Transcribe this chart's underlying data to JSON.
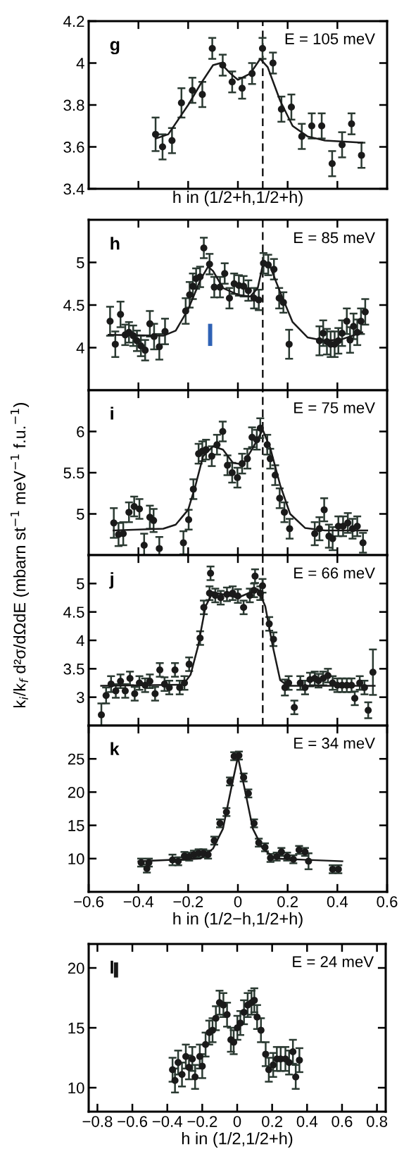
{
  "chart_data": [
    {
      "type": "scatter",
      "xlabel": "h in (1/2+h,1/2+h)",
      "xlim": [
        -0.6,
        0.6
      ],
      "xticks": [
        {
          "value": -0.4,
          "label": null
        },
        {
          "value": -0.2,
          "label": null
        },
        {
          "value": 0,
          "label": null
        },
        {
          "value": 0.2,
          "label": null
        },
        {
          "value": 0.4,
          "label": null
        }
      ],
      "ylim": [
        3.4,
        4.2
      ],
      "yticks": [
        3.4,
        3.6,
        3.8,
        4,
        4.2
      ],
      "tick_labels": "y",
      "grid": false,
      "legend": false,
      "annotations": [
        "g",
        "E = 105 meV"
      ],
      "ref_lines": [
        {
          "axis": "x",
          "value": 0.1,
          "color": "#000000",
          "line_style": "dashed"
        }
      ],
      "series": [
        {
          "type": "scatter",
          "marker": "circle",
          "color": "#1a1a1a",
          "x": [
            -0.331,
            -0.303,
            -0.265,
            -0.227,
            -0.183,
            -0.143,
            -0.103,
            -0.061,
            -0.023,
            0.017,
            0.057,
            0.099,
            0.141,
            0.175,
            0.215,
            0.257,
            0.297,
            0.337,
            0.379,
            0.419,
            0.457,
            0.497
          ],
          "values": [
            3.66,
            3.6,
            3.63,
            3.81,
            3.87,
            3.85,
            4.07,
            3.99,
            3.91,
            3.88,
            3.95,
            4.07,
            4.0,
            3.78,
            3.79,
            3.65,
            3.7,
            3.7,
            3.52,
            3.61,
            3.71,
            3.56
          ],
          "errors": [
            0.08,
            0.06,
            0.06,
            0.07,
            0.06,
            0.06,
            0.05,
            0.05,
            0.05,
            0.05,
            0.05,
            0.05,
            0.05,
            0.06,
            0.06,
            0.06,
            0.06,
            0.06,
            0.06,
            0.06,
            0.05,
            0.06
          ]
        },
        {
          "type": "line",
          "color": "#1a1a1a",
          "marker": "none",
          "line_style": "solid",
          "x": [
            -0.33,
            -0.28,
            -0.2,
            -0.15,
            -0.1,
            -0.07,
            -0.03,
            0,
            0.05,
            0.09,
            0.12,
            0.17,
            0.22,
            0.28,
            0.35,
            0.5
          ],
          "values": [
            3.64,
            3.66,
            3.8,
            3.9,
            3.99,
            4.0,
            3.95,
            3.92,
            3.95,
            4.02,
            3.98,
            3.82,
            3.7,
            3.65,
            3.63,
            3.62
          ]
        }
      ]
    },
    {
      "type": "scatter",
      "xlim": [
        -0.6,
        0.6
      ],
      "xticks": [
        {
          "value": -0.4,
          "label": null
        },
        {
          "value": -0.2,
          "label": null
        },
        {
          "value": 0,
          "label": null
        },
        {
          "value": 0.2,
          "label": null
        },
        {
          "value": 0.4,
          "label": null
        }
      ],
      "ylim": [
        3.5,
        5.5
      ],
      "yticks": [
        4,
        4.5,
        5
      ],
      "tick_labels": "y",
      "grid": false,
      "legend": false,
      "annotations": [
        "h",
        "E = 85 meV"
      ],
      "ref_lines": [
        {
          "axis": "x",
          "value": 0.1,
          "color": "#000000",
          "line_style": "dashed"
        }
      ],
      "series": [
        {
          "type": "scatter",
          "marker": "circle",
          "color": "#1a1a1a",
          "x": [
            -0.514,
            -0.493,
            -0.472,
            -0.453,
            -0.438,
            -0.421,
            -0.406,
            -0.39,
            -0.373,
            -0.354,
            -0.337,
            -0.316,
            -0.293,
            -0.21,
            -0.194,
            -0.181,
            -0.168,
            -0.152,
            -0.137,
            -0.114,
            -0.095,
            -0.072,
            -0.053,
            -0.034,
            -0.015,
            0.004,
            0.023,
            0.042,
            0.065,
            0.084,
            0.103,
            0.122,
            0.145,
            0.166,
            0.183,
            0.206,
            0.328,
            0.343,
            0.358,
            0.373,
            0.389,
            0.404,
            0.419,
            0.438,
            0.451,
            0.465,
            0.48,
            0.495,
            0.512
          ],
          "values": [
            4.31,
            4.04,
            4.39,
            4.15,
            4.18,
            4.14,
            4.08,
            4.02,
            3.97,
            4.28,
            4.13,
            4.01,
            4.19,
            4.43,
            4.62,
            4.72,
            4.81,
            4.83,
            5.17,
            4.98,
            4.71,
            4.71,
            4.87,
            4.58,
            4.75,
            4.73,
            4.72,
            4.67,
            4.58,
            4.56,
            4.99,
            4.97,
            4.92,
            4.58,
            4.53,
            4.04,
            4.08,
            4.17,
            4.07,
            4.04,
            4.04,
            4.08,
            4.17,
            4.31,
            4.09,
            4.25,
            4.18,
            4.31,
            4.42
          ],
          "errors": [
            0.17,
            0.15,
            0.15,
            0.12,
            0.12,
            0.12,
            0.12,
            0.12,
            0.12,
            0.15,
            0.15,
            0.15,
            0.15,
            0.15,
            0.15,
            0.15,
            0.12,
            0.12,
            0.12,
            0.12,
            0.12,
            0.12,
            0.12,
            0.12,
            0.12,
            0.12,
            0.12,
            0.12,
            0.12,
            0.12,
            0.12,
            0.12,
            0.12,
            0.12,
            0.12,
            0.17,
            0.17,
            0.15,
            0.15,
            0.15,
            0.15,
            0.15,
            0.15,
            0.15,
            0.15,
            0.15,
            0.15,
            0.15,
            0.15
          ]
        },
        {
          "type": "line",
          "color": "#1a1a1a",
          "marker": "none",
          "line_style": "solid",
          "x": [
            -0.52,
            -0.3,
            -0.25,
            -0.2,
            -0.15,
            -0.12,
            -0.1,
            -0.06,
            0,
            0.05,
            0.08,
            0.1,
            0.13,
            0.17,
            0.22,
            0.28,
            0.35,
            0.42,
            0.5
          ],
          "values": [
            4.15,
            4.14,
            4.2,
            4.45,
            4.8,
            4.95,
            4.9,
            4.7,
            4.62,
            4.6,
            4.7,
            4.97,
            4.95,
            4.65,
            4.3,
            4.12,
            4.08,
            4.1,
            4.18
          ]
        }
      ]
    },
    {
      "type": "scatter",
      "xlim": [
        -0.6,
        0.6
      ],
      "xticks": [
        {
          "value": -0.4,
          "label": null
        },
        {
          "value": -0.2,
          "label": null
        },
        {
          "value": 0,
          "label": null
        },
        {
          "value": 0.2,
          "label": null
        },
        {
          "value": 0.4,
          "label": null
        }
      ],
      "ylim": [
        4.5,
        6.5
      ],
      "yticks": [
        5,
        5.5,
        6
      ],
      "tick_labels": "y",
      "grid": false,
      "legend": false,
      "ylabel": "k$_{i}$/k$_{f}$ d²σ/dΩdE (mbarn st$^{−1}$ meV$^{−1}$ f.u.$^{−1}$)",
      "annotations": [
        "i",
        "E = 75 meV"
      ],
      "ref_lines": [
        {
          "axis": "x",
          "value": 0.1,
          "color": "#000000",
          "line_style": "dashed"
        }
      ],
      "series": [
        {
          "type": "scatter",
          "marker": "circle",
          "color": "#1a1a1a",
          "x": [
            -0.499,
            -0.48,
            -0.461,
            -0.438,
            -0.417,
            -0.396,
            -0.377,
            -0.354,
            -0.339,
            -0.316,
            -0.219,
            -0.198,
            -0.179,
            -0.158,
            -0.143,
            -0.128,
            -0.105,
            -0.084,
            -0.061,
            -0.042,
            -0.023,
            -0.002,
            0.017,
            0.038,
            0.057,
            0.076,
            0.09,
            0.118,
            0.13,
            0.15,
            0.168,
            0.187,
            0.208,
            0.309,
            0.328,
            0.347,
            0.366,
            0.381,
            0.404,
            0.423,
            0.442,
            0.461,
            0.48,
            0.503
          ],
          "values": [
            4.89,
            4.75,
            4.76,
            5.02,
            5.09,
            5.06,
            4.62,
            4.96,
            4.92,
            4.58,
            4.65,
            4.93,
            5.3,
            5.73,
            5.76,
            5.78,
            5.7,
            5.84,
            6.0,
            5.59,
            5.5,
            5.44,
            5.61,
            5.67,
            5.93,
            5.9,
            6.04,
            5.84,
            5.67,
            5.47,
            5.19,
            5.02,
            4.82,
            4.76,
            4.82,
            5.05,
            4.73,
            4.7,
            4.85,
            4.85,
            4.89,
            4.82,
            4.85,
            4.65
          ],
          "errors": [
            0.18,
            0.14,
            0.14,
            0.12,
            0.12,
            0.12,
            0.14,
            0.14,
            0.14,
            0.14,
            0.14,
            0.12,
            0.12,
            0.12,
            0.12,
            0.12,
            0.12,
            0.12,
            0.12,
            0.12,
            0.12,
            0.12,
            0.12,
            0.12,
            0.12,
            0.12,
            0.12,
            0.12,
            0.12,
            0.12,
            0.12,
            0.12,
            0.12,
            0.14,
            0.14,
            0.14,
            0.14,
            0.14,
            0.12,
            0.12,
            0.12,
            0.12,
            0.12,
            0.12
          ]
        },
        {
          "type": "line",
          "color": "#1a1a1a",
          "marker": "none",
          "line_style": "solid",
          "x": [
            -0.5,
            -0.3,
            -0.25,
            -0.2,
            -0.17,
            -0.14,
            -0.1,
            -0.06,
            -0.02,
            0.02,
            0.06,
            0.1,
            0.13,
            0.17,
            0.21,
            0.27,
            0.35,
            0.52
          ],
          "values": [
            4.8,
            4.82,
            4.87,
            5.05,
            5.35,
            5.7,
            5.82,
            5.78,
            5.62,
            5.6,
            5.8,
            6.02,
            5.8,
            5.35,
            5.0,
            4.83,
            4.8,
            4.8
          ]
        }
      ]
    },
    {
      "type": "scatter",
      "xlim": [
        -0.6,
        0.6
      ],
      "xticks": [
        {
          "value": -0.4,
          "label": null
        },
        {
          "value": -0.2,
          "label": null
        },
        {
          "value": 0,
          "label": null
        },
        {
          "value": 0.2,
          "label": null
        },
        {
          "value": 0.4,
          "label": null
        }
      ],
      "ylim": [
        2.5,
        5.5
      ],
      "yticks": [
        3,
        3.5,
        4,
        4.5,
        5
      ],
      "tick_labels": "y",
      "grid": false,
      "legend": false,
      "annotations": [
        "j",
        "E = 66 meV"
      ],
      "ref_lines": [
        {
          "axis": "x",
          "value": 0.1,
          "color": "#000000",
          "line_style": "dashed"
        }
      ],
      "series": [
        {
          "type": "scatter",
          "marker": "circle",
          "color": "#1a1a1a",
          "x": [
            -0.549,
            -0.53,
            -0.51,
            -0.491,
            -0.472,
            -0.453,
            -0.434,
            -0.415,
            -0.396,
            -0.373,
            -0.354,
            -0.333,
            -0.314,
            -0.295,
            -0.276,
            -0.253,
            -0.234,
            -0.215,
            -0.196,
            -0.152,
            -0.137,
            -0.114,
            -0.11,
            -0.091,
            -0.069,
            -0.044,
            -0.021,
            0.0,
            0.023,
            0.048,
            0.065,
            0.069,
            0.09,
            0.099,
            0.126,
            0.143,
            0.189,
            0.204,
            0.227,
            0.251,
            0.27,
            0.29,
            0.309,
            0.324,
            0.343,
            0.362,
            0.381,
            0.4,
            0.419,
            0.438,
            0.457,
            0.47,
            0.49,
            0.509,
            0.524,
            0.543
          ],
          "values": [
            2.69,
            3.03,
            3.23,
            3.11,
            3.28,
            3.11,
            3.33,
            3.06,
            3.25,
            3.21,
            3.28,
            3.06,
            3.48,
            3.23,
            3.17,
            3.48,
            3.17,
            3.25,
            3.58,
            4.04,
            4.58,
            4.83,
            5.18,
            4.79,
            4.75,
            4.81,
            4.83,
            4.78,
            4.58,
            4.79,
            4.88,
            5.13,
            4.83,
            4.96,
            4.29,
            4.02,
            3.17,
            3.25,
            2.82,
            3.25,
            3.17,
            3.31,
            3.33,
            3.29,
            3.33,
            3.38,
            3.25,
            3.21,
            3.21,
            3.21,
            3.21,
            2.98,
            3.25,
            3.17,
            2.77,
            3.44
          ],
          "errors": [
            0.2,
            0.14,
            0.14,
            0.12,
            0.12,
            0.12,
            0.12,
            0.12,
            0.12,
            0.12,
            0.12,
            0.12,
            0.12,
            0.12,
            0.12,
            0.12,
            0.12,
            0.12,
            0.12,
            0.12,
            0.12,
            0.12,
            0.12,
            0.12,
            0.12,
            0.12,
            0.12,
            0.12,
            0.12,
            0.12,
            0.12,
            0.12,
            0.12,
            0.12,
            0.12,
            0.12,
            0.14,
            0.12,
            0.12,
            0.12,
            0.12,
            0.12,
            0.12,
            0.12,
            0.12,
            0.12,
            0.12,
            0.12,
            0.12,
            0.12,
            0.12,
            0.12,
            0.12,
            0.12,
            0.14,
            0.4
          ]
        },
        {
          "type": "line",
          "color": "#1a1a1a",
          "marker": "none",
          "line_style": "solid",
          "x": [
            -0.55,
            -0.22,
            -0.19,
            -0.16,
            -0.13,
            -0.1,
            0,
            0.08,
            0.11,
            0.14,
            0.17,
            0.2,
            0.55
          ],
          "values": [
            3.2,
            3.22,
            3.4,
            3.9,
            4.6,
            4.85,
            4.75,
            4.9,
            4.6,
            3.9,
            3.3,
            3.2,
            3.2
          ]
        }
      ]
    },
    {
      "type": "scatter",
      "xlabel": "h in (1/2−h,1/2+h)",
      "xlim": [
        -0.6,
        0.6
      ],
      "xticks": [
        {
          "value": -0.6,
          "label": "−0.6"
        },
        {
          "value": -0.4,
          "label": "−0.4"
        },
        {
          "value": -0.2,
          "label": "−0.2"
        },
        0,
        0.2,
        0.4,
        0.6
      ],
      "ylim": [
        5,
        30
      ],
      "yticks": [
        10,
        15,
        20,
        25
      ],
      "grid": false,
      "legend": false,
      "annotations": [
        "k",
        "E = 34 meV"
      ],
      "series": [
        {
          "type": "scatter",
          "marker": "circle",
          "color": "#1a1a1a",
          "x": [
            -0.389,
            -0.366,
            -0.358,
            -0.263,
            -0.24,
            -0.215,
            -0.196,
            -0.177,
            -0.158,
            -0.139,
            -0.12,
            -0.095,
            -0.072,
            -0.046,
            -0.032,
            -0.015,
            0.004,
            0.023,
            0.042,
            0.065,
            0.084,
            0.109,
            0.131,
            0.156,
            0.175,
            0.198,
            0.223,
            0.246,
            0.27,
            0.284,
            0.381,
            0.404
          ],
          "values": [
            9.4,
            8.5,
            9.4,
            9.8,
            9.6,
            10.4,
            10.3,
            10.6,
            10.8,
            10.8,
            10.6,
            12.7,
            15.3,
            17.0,
            21.6,
            25.4,
            25.5,
            22.2,
            19.8,
            15.3,
            12.4,
            11.7,
            10.1,
            10.3,
            11.0,
            10.3,
            9.9,
            11.3,
            11.0,
            9.6,
            8.4,
            8.4
          ],
          "errors": [
            0.6,
            0.6,
            0.6,
            0.8,
            0.6,
            0.6,
            0.6,
            0.6,
            0.6,
            0.6,
            0.6,
            0.6,
            0.6,
            0.6,
            0.6,
            0.6,
            0.6,
            0.6,
            0.6,
            0.6,
            0.6,
            0.6,
            0.6,
            0.6,
            0.6,
            0.6,
            0.6,
            0.6,
            0.6,
            1.2,
            0.6,
            0.6
          ]
        },
        {
          "type": "line",
          "color": "#1a1a1a",
          "marker": "none",
          "line_style": "solid",
          "x": [
            -0.4,
            -0.15,
            -0.1,
            -0.06,
            -0.03,
            0,
            0.03,
            0.06,
            0.1,
            0.15,
            0.42
          ],
          "values": [
            9.6,
            10.0,
            11.5,
            14.5,
            20,
            25.3,
            20,
            14.5,
            11.5,
            10.0,
            9.6
          ]
        }
      ]
    },
    {
      "type": "scatter",
      "xlabel": "h in (1/2,1/2+h)",
      "xlim": [
        -0.85,
        0.85
      ],
      "xticks": [
        {
          "value": -0.8,
          "label": "−0.8"
        },
        {
          "value": -0.6,
          "label": "−0.6"
        },
        {
          "value": -0.4,
          "label": "−0.4"
        },
        {
          "value": -0.2,
          "label": "−0.2"
        },
        0,
        0.2,
        0.4,
        0.6,
        0.8
      ],
      "ylim": [
        8,
        22
      ],
      "yticks": [
        10,
        15,
        20
      ],
      "grid": false,
      "legend": false,
      "annotations": [
        "l",
        "E = 24 meV"
      ],
      "series": [
        {
          "type": "scatter",
          "marker": "circle",
          "color": "#1a1a1a",
          "x": [
            -0.37,
            -0.356,
            -0.338,
            -0.316,
            -0.294,
            -0.276,
            -0.257,
            -0.241,
            -0.214,
            -0.2,
            -0.181,
            -0.16,
            -0.141,
            -0.122,
            -0.101,
            -0.079,
            -0.058,
            -0.036,
            -0.02,
            0.001,
            0.018,
            0.039,
            0.06,
            0.082,
            0.098,
            0.114,
            0.136,
            0.163,
            0.181,
            0.206,
            0.227,
            0.249,
            0.276,
            0.297,
            0.319,
            0.335,
            0.356
          ],
          "values": [
            11.5,
            10.6,
            12.1,
            11.1,
            12.6,
            11.7,
            12.4,
            10.9,
            12.6,
            11.8,
            13.6,
            14.6,
            14.8,
            15.8,
            17.1,
            16.9,
            16.1,
            14.0,
            13.8,
            15.0,
            15.4,
            16.3,
            16.9,
            17.1,
            17.3,
            15.9,
            14.8,
            12.8,
            11.5,
            11.9,
            12.4,
            12.4,
            12.4,
            12.1,
            13.0,
            10.9,
            12.3
          ],
          "errors": [
            1.0,
            1.0,
            1.0,
            1.0,
            1.0,
            1.0,
            1.0,
            1.0,
            1.0,
            1.0,
            1.0,
            1.0,
            1.0,
            1.0,
            1.0,
            1.0,
            1.0,
            1.0,
            1.0,
            1.0,
            1.0,
            1.0,
            1.0,
            1.0,
            1.0,
            1.0,
            1.0,
            1.0,
            1.0,
            1.0,
            1.0,
            1.0,
            1.0,
            1.0,
            1.0,
            1.0,
            1.0
          ]
        }
      ]
    }
  ]
}
